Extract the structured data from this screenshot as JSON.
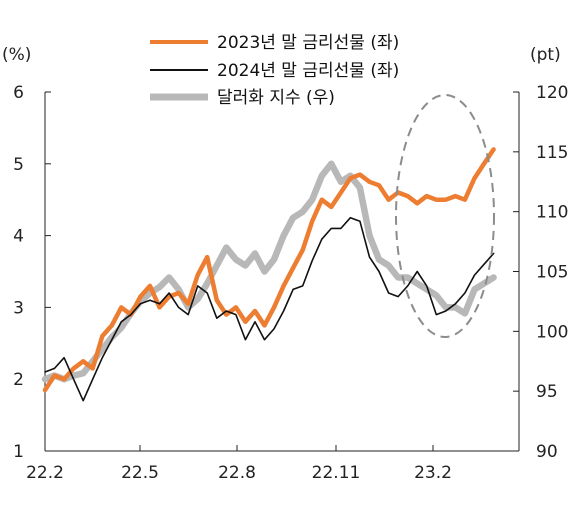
{
  "chart_data": {
    "type": "line",
    "left_unit": "(%)",
    "right_unit": "(pt)",
    "x_ticks": [
      "22.2",
      "22.5",
      "22.8",
      "22.11",
      "23.2"
    ],
    "left_axis": {
      "ticks": [
        "1",
        "2",
        "3",
        "4",
        "5",
        "6"
      ],
      "ylim": [
        1,
        6
      ]
    },
    "right_axis": {
      "ticks": [
        "90",
        "95",
        "100",
        "105",
        "110",
        "115",
        "120"
      ],
      "ylim": [
        90,
        120
      ]
    },
    "x_range": [
      0,
      14.9
    ],
    "grid": false,
    "legend_position": "top-center",
    "annotation": "dashed ellipse highlighting the latest period",
    "series": [
      {
        "name": "2023년 말 금리선물 (좌)",
        "axis": "left",
        "color": "#ED7D31",
        "x": [
          0,
          0.3,
          0.6,
          0.9,
          1.2,
          1.5,
          1.8,
          2.1,
          2.4,
          2.7,
          3.0,
          3.3,
          3.6,
          3.9,
          4.2,
          4.5,
          4.8,
          5.1,
          5.4,
          5.7,
          6.0,
          6.3,
          6.6,
          6.9,
          7.2,
          7.5,
          7.8,
          8.1,
          8.4,
          8.7,
          9.0,
          9.3,
          9.6,
          9.9,
          10.2,
          10.5,
          10.8,
          11.1,
          11.4,
          11.7,
          12.0,
          12.3,
          12.6,
          12.9,
          13.2,
          13.5,
          13.8,
          14.1
        ],
        "y": [
          1.85,
          2.05,
          2.0,
          2.15,
          2.25,
          2.15,
          2.6,
          2.75,
          3.0,
          2.9,
          3.15,
          3.3,
          3.0,
          3.15,
          3.2,
          3.05,
          3.45,
          3.7,
          3.1,
          2.9,
          3.0,
          2.8,
          2.95,
          2.75,
          3.0,
          3.3,
          3.55,
          3.8,
          4.2,
          4.5,
          4.4,
          4.6,
          4.8,
          4.85,
          4.75,
          4.7,
          4.5,
          4.6,
          4.55,
          4.45,
          4.55,
          4.5,
          4.5,
          4.55,
          4.5,
          4.8,
          5.0,
          5.2
        ]
      },
      {
        "name": "2024년 말 금리선물 (좌)",
        "axis": "left",
        "color": "#111111",
        "x": [
          0,
          0.3,
          0.6,
          0.9,
          1.2,
          1.5,
          1.8,
          2.1,
          2.4,
          2.7,
          3.0,
          3.3,
          3.6,
          3.9,
          4.2,
          4.5,
          4.8,
          5.1,
          5.4,
          5.7,
          6.0,
          6.3,
          6.6,
          6.9,
          7.2,
          7.5,
          7.8,
          8.1,
          8.4,
          8.7,
          9.0,
          9.3,
          9.6,
          9.9,
          10.2,
          10.5,
          10.8,
          11.1,
          11.4,
          11.7,
          12.0,
          12.3,
          12.6,
          12.9,
          13.2,
          13.5,
          13.8,
          14.1
        ],
        "y": [
          2.1,
          2.15,
          2.3,
          2.0,
          1.7,
          2.0,
          2.3,
          2.55,
          2.8,
          2.9,
          3.05,
          3.1,
          3.05,
          3.2,
          3.0,
          2.9,
          3.3,
          3.2,
          2.85,
          2.95,
          2.9,
          2.55,
          2.8,
          2.55,
          2.7,
          2.95,
          3.25,
          3.3,
          3.65,
          3.95,
          4.1,
          4.1,
          4.25,
          4.2,
          3.7,
          3.5,
          3.2,
          3.15,
          3.3,
          3.5,
          3.3,
          2.9,
          2.95,
          3.05,
          3.2,
          3.45,
          3.6,
          3.75
        ]
      },
      {
        "name": "달러화 지수 (우)",
        "axis": "right",
        "color": "#B8B8B8",
        "x": [
          0,
          0.3,
          0.6,
          0.9,
          1.2,
          1.5,
          1.8,
          2.1,
          2.4,
          2.7,
          3.0,
          3.3,
          3.6,
          3.9,
          4.2,
          4.5,
          4.8,
          5.1,
          5.4,
          5.7,
          6.0,
          6.3,
          6.6,
          6.9,
          7.2,
          7.5,
          7.8,
          8.1,
          8.4,
          8.7,
          9.0,
          9.3,
          9.6,
          9.9,
          10.2,
          10.5,
          10.8,
          11.1,
          11.4,
          11.7,
          12.0,
          12.3,
          12.6,
          12.9,
          13.2,
          13.5,
          13.8,
          14.1
        ],
        "y": [
          96.0,
          96.3,
          96.0,
          96.3,
          96.5,
          97.5,
          98.5,
          99.5,
          100.3,
          101.5,
          102.5,
          103.2,
          103.7,
          104.5,
          103.5,
          102.0,
          102.7,
          104.0,
          105.5,
          107.0,
          106.0,
          105.5,
          106.5,
          105.0,
          106.0,
          108.0,
          109.5,
          110.0,
          111.0,
          113.0,
          114.0,
          112.5,
          113.0,
          112.0,
          108.0,
          106.0,
          105.5,
          104.5,
          104.5,
          104.0,
          103.5,
          103.0,
          102.0,
          102.0,
          101.5,
          103.5,
          104.0,
          104.5
        ]
      }
    ]
  }
}
